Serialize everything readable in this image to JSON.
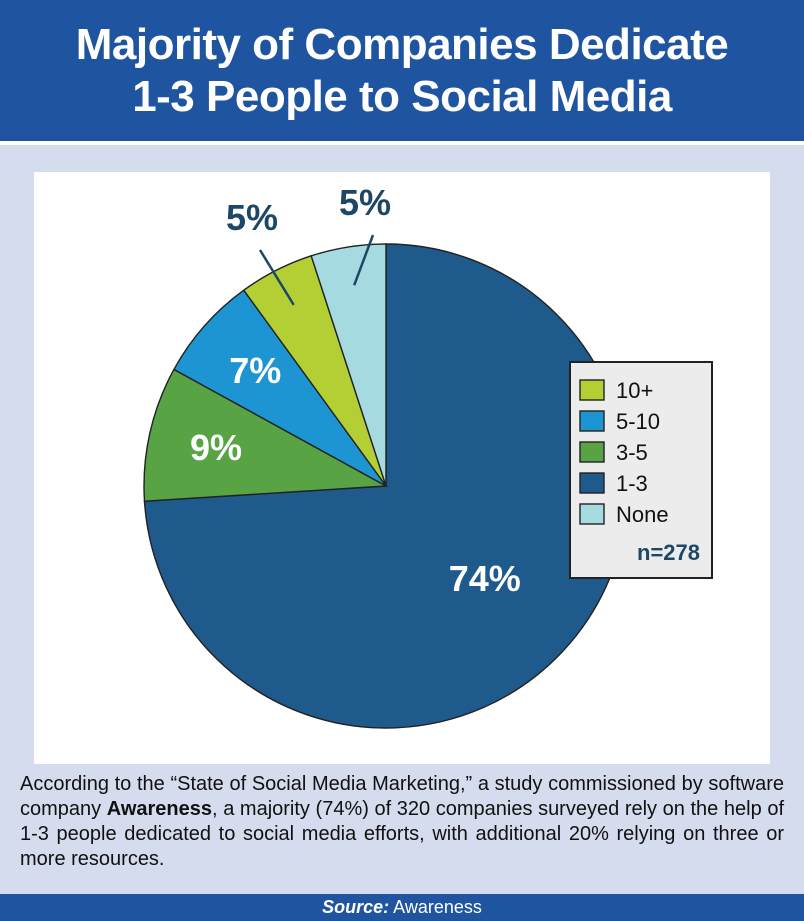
{
  "header": {
    "title_line1": "Majority of Companies Dedicate",
    "title_line2": "1-3 People to Social Media"
  },
  "chart_data": {
    "type": "pie",
    "slices": [
      {
        "label": "1-3",
        "value": 74,
        "display": "74%",
        "color": "#1f5a8c"
      },
      {
        "label": "3-5",
        "value": 9,
        "display": "9%",
        "color": "#58a445"
      },
      {
        "label": "5-10",
        "value": 7,
        "display": "7%",
        "color": "#1e95d3"
      },
      {
        "label": "10+",
        "value": 5,
        "display": "5%",
        "color": "#b3cf33"
      },
      {
        "label": "None",
        "value": 5,
        "display": "5%",
        "color": "#a5dae0"
      }
    ],
    "legend": {
      "placement": "right",
      "entries": [
        "10+",
        "5-10",
        "3-5",
        "1-3",
        "None"
      ],
      "note": "n=278"
    }
  },
  "description": {
    "part1": "According to the “State of Social Media Marketing,” a study commissioned by software company ",
    "bold": "Awareness",
    "part2": ", a majority (74%) of 320 companies surveyed rely on the help of 1-3 people dedicated to social media efforts, with additional 20% relying on three or more resources."
  },
  "footer": {
    "source_label": "Source:",
    "source_value": "Awareness"
  }
}
